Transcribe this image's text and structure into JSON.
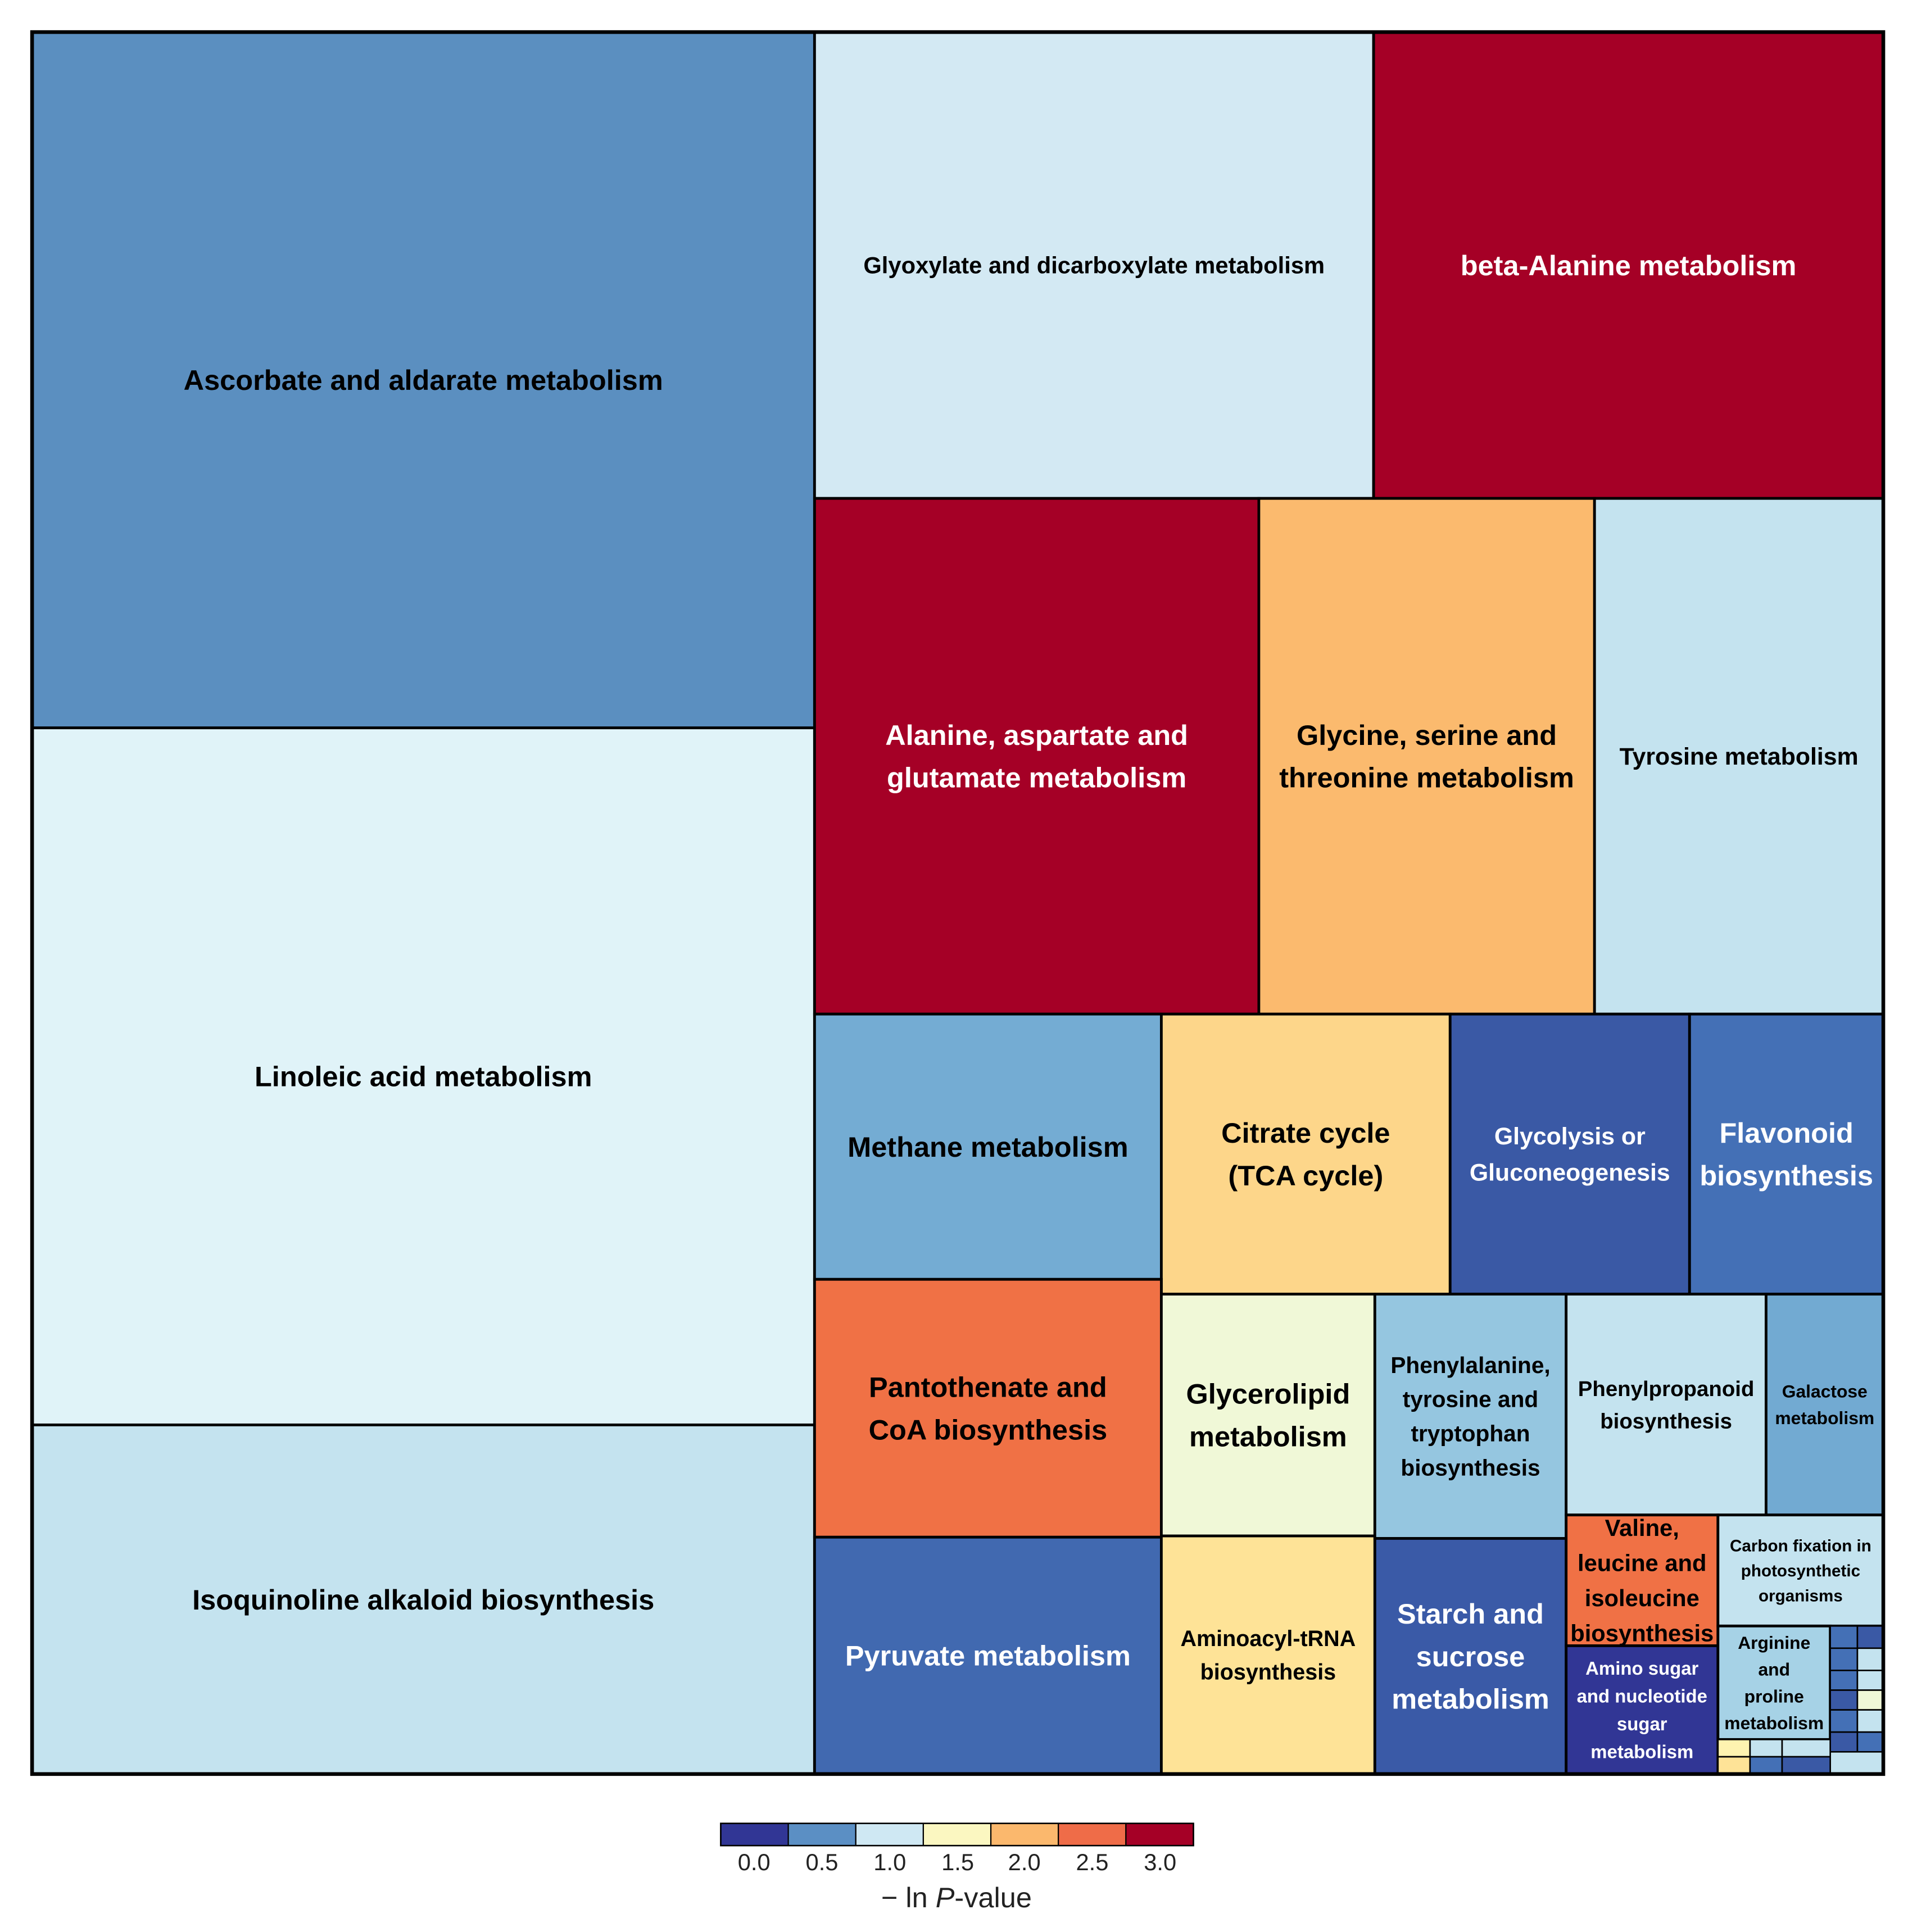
{
  "chart_data": {
    "type": "treemap",
    "color_scale": {
      "title_prefix": "− ln ",
      "title_italic": "P",
      "title_suffix": "-value",
      "ticks": [
        "0.0",
        "0.5",
        "1.0",
        "1.5",
        "2.0",
        "2.5",
        "3.0"
      ],
      "colors": [
        "#313695",
        "#5b8fc4",
        "#cfe8f3",
        "#fbf7c1",
        "#fbb86d",
        "#ef6c48",
        "#a50026"
      ]
    },
    "tiles": [
      {
        "label": "Ascorbate and aldarate metabolism",
        "neg_ln_p": 0.6,
        "color": "#5b8fc0",
        "text": "#000000"
      },
      {
        "label": "Linoleic acid metabolism",
        "neg_ln_p": 1.1,
        "color": "#e0f3f8",
        "text": "#000000"
      },
      {
        "label": "Isoquinoline alkaloid biosynthesis",
        "neg_ln_p": 1.0,
        "color": "#c4e3ef",
        "text": "#000000"
      },
      {
        "label": "Glyoxylate and dicarboxylate metabolism",
        "neg_ln_p": 1.05,
        "color": "#d3e9f3",
        "text": "#000000"
      },
      {
        "label": "beta-Alanine metabolism",
        "neg_ln_p": 3.1,
        "color": "#a50026",
        "text": "#ffffff"
      },
      {
        "label": "Alanine, aspartate and glutamate metabolism",
        "neg_ln_p": 3.1,
        "color": "#a50026",
        "text": "#ffffff"
      },
      {
        "label": "Glycine, serine and threonine metabolism",
        "neg_ln_p": 2.0,
        "color": "#fbba6e",
        "text": "#000000"
      },
      {
        "label": "Tyrosine metabolism",
        "neg_ln_p": 1.0,
        "color": "#c4e3ef",
        "text": "#000000"
      },
      {
        "label": "Methane metabolism",
        "neg_ln_p": 0.7,
        "color": "#74acd3",
        "text": "#000000"
      },
      {
        "label": "Citrate cycle (TCA cycle)",
        "neg_ln_p": 1.8,
        "color": "#fdd68a",
        "text": "#000000"
      },
      {
        "label": "Glycolysis or Gluconeogenesis",
        "neg_ln_p": 0.2,
        "color": "#3a59a5",
        "text": "#ffffff"
      },
      {
        "label": "Flavonoid biosynthesis",
        "neg_ln_p": 0.4,
        "color": "#4470b6",
        "text": "#ffffff"
      },
      {
        "label": "Pantothenate and CoA biosynthesis",
        "neg_ln_p": 2.5,
        "color": "#f07145",
        "text": "#000000"
      },
      {
        "label": "Pyruvate metabolism",
        "neg_ln_p": 0.4,
        "color": "#4169b0",
        "text": "#ffffff"
      },
      {
        "label": "Glycerolipid metabolism",
        "neg_ln_p": 1.4,
        "color": "#f0f8d7",
        "text": "#000000"
      },
      {
        "label": "Aminoacyl-tRNA biosynthesis",
        "neg_ln_p": 1.7,
        "color": "#fee397",
        "text": "#000000"
      },
      {
        "label": "Phenylalanine, tyrosine and tryptophan biosynthesis",
        "neg_ln_p": 0.8,
        "color": "#95c6e0",
        "text": "#000000"
      },
      {
        "label": "Starch and sucrose metabolism",
        "neg_ln_p": 0.25,
        "color": "#3a5aa7",
        "text": "#ffffff"
      },
      {
        "label": "Phenylpropanoid biosynthesis",
        "neg_ln_p": 1.0,
        "color": "#c4e3ef",
        "text": "#000000"
      },
      {
        "label": "Galactose metabolism",
        "neg_ln_p": 0.65,
        "color": "#72aad2",
        "text": "#000000"
      },
      {
        "label": "Valine, leucine and isoleucine biosynthesis",
        "neg_ln_p": 2.5,
        "color": "#f07145",
        "text": "#000000"
      },
      {
        "label": "Amino sugar and nucleotide sugar metabolism",
        "neg_ln_p": 0.1,
        "color": "#313695",
        "text": "#ffffff"
      },
      {
        "label": "Carbon fixation in photosynthetic organisms",
        "neg_ln_p": 1.0,
        "color": "#c4e3ef",
        "text": "#000000"
      },
      {
        "label": "Arginine and proline metabolism",
        "neg_ln_p": 0.9,
        "color": "#a6d2e6",
        "text": "#000000"
      }
    ],
    "small_tiles": [
      {
        "neg_ln_p": 0.3,
        "color": "#4470b6"
      },
      {
        "neg_ln_p": 0.2,
        "color": "#3a59a5"
      },
      {
        "neg_ln_p": 0.3,
        "color": "#4470b6"
      },
      {
        "neg_ln_p": 1.0,
        "color": "#c4e3ef"
      },
      {
        "neg_ln_p": 0.3,
        "color": "#4470b6"
      },
      {
        "neg_ln_p": 1.0,
        "color": "#c4e3ef"
      },
      {
        "neg_ln_p": 0.2,
        "color": "#3a59a5"
      },
      {
        "neg_ln_p": 1.3,
        "color": "#f0f8d7"
      },
      {
        "neg_ln_p": 0.3,
        "color": "#4470b6"
      },
      {
        "neg_ln_p": 1.0,
        "color": "#c4e3ef"
      },
      {
        "neg_ln_p": 0.2,
        "color": "#3a59a5"
      },
      {
        "neg_ln_p": 0.3,
        "color": "#4470b6"
      },
      {
        "neg_ln_p": 1.0,
        "color": "#c4e3ef"
      },
      {
        "neg_ln_p": 1.5,
        "color": "#fef3b0"
      },
      {
        "neg_ln_p": 1.0,
        "color": "#c4e3ef"
      },
      {
        "neg_ln_p": 1.0,
        "color": "#c4e3ef"
      },
      {
        "neg_ln_p": 1.7,
        "color": "#fee397"
      },
      {
        "neg_ln_p": 0.3,
        "color": "#4470b6"
      },
      {
        "neg_ln_p": 0.2,
        "color": "#3a59a5"
      }
    ]
  }
}
